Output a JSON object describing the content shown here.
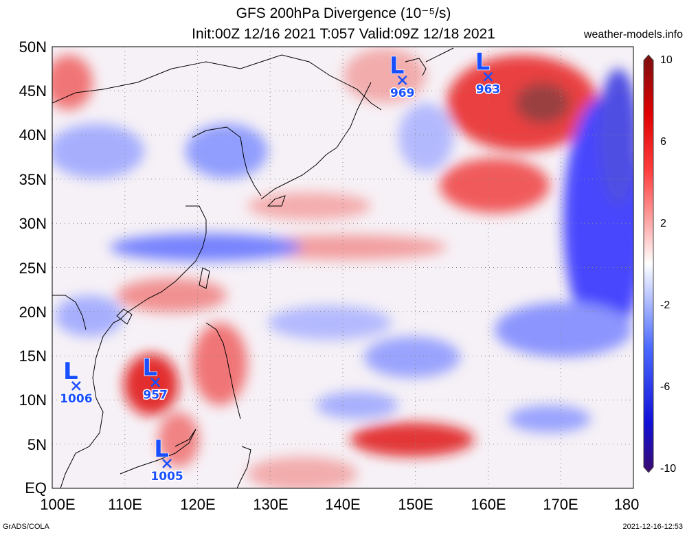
{
  "title_line1": "GFS 200hPa Divergence (10⁻⁵/s)",
  "title_line2": "Init:00Z 12/16 2021 T:057 Valid:09Z 12/18 2021",
  "site": "weather-models.info",
  "footer_left": "GrADS/COLA",
  "footer_right": "2021-12-16-12:53",
  "lat_labels": [
    "50N",
    "45N",
    "40N",
    "35N",
    "30N",
    "25N",
    "20N",
    "15N",
    "10N",
    "5N",
    "EQ"
  ],
  "lon_labels": [
    "100E",
    "110E",
    "120E",
    "130E",
    "140E",
    "150E",
    "160E",
    "170E",
    "180"
  ],
  "colorbar_labels": [
    "10",
    "6",
    "2",
    "-2",
    "-6",
    "-10"
  ],
  "colors": {
    "positive": "#e00000",
    "negative": "#1a1aff",
    "neutral": "#ffffff",
    "low_marker": "#1a4fff"
  },
  "lows": [
    {
      "letter": "L",
      "value": "969",
      "lon": 148.2,
      "lat": 46.2
    },
    {
      "letter": "L",
      "value": "963",
      "lon": 160.0,
      "lat": 46.6
    },
    {
      "letter": "L",
      "value": "1006",
      "lon": 103.3,
      "lat": 11.6
    },
    {
      "letter": "L",
      "value": "957",
      "lon": 114.2,
      "lat": 12.0
    },
    {
      "letter": "L",
      "value": "1005",
      "lon": 115.8,
      "lat": 2.8
    }
  ]
}
